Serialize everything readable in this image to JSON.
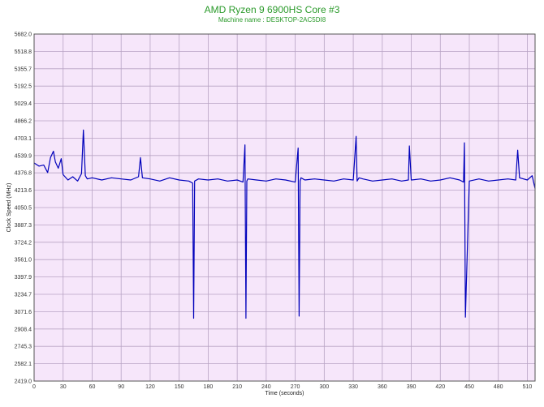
{
  "chart_data": {
    "type": "line",
    "title": "AMD Ryzen 9 6900HS Core #3",
    "subtitle": "Machine name : DESKTOP-2AC5DI8",
    "xlabel": "Time (seconds)",
    "ylabel": "Clock Speed (MHz)",
    "xlim": [
      0,
      518
    ],
    "ylim": [
      2419.0,
      5682.0
    ],
    "x_ticks": [
      "0",
      "30",
      "60",
      "90",
      "120",
      "150",
      "180",
      "210",
      "240",
      "270",
      "300",
      "330",
      "360",
      "390",
      "420",
      "450",
      "480",
      "510"
    ],
    "y_ticks": [
      "2419.0",
      "2582.1",
      "2745.3",
      "2908.4",
      "3071.6",
      "3234.7",
      "3397.9",
      "3561.0",
      "3724.2",
      "3887.3",
      "4050.5",
      "4213.6",
      "4376.8",
      "4539.9",
      "4703.1",
      "4866.2",
      "5029.4",
      "5192.5",
      "5355.7",
      "5518.8",
      "5682.0"
    ],
    "grid": true,
    "colors": {
      "line": "#0000bb",
      "plot_bg": "#f6e6fa",
      "grid": "#b8a3c4",
      "title": "#2a9a2a"
    },
    "series": [
      {
        "values_description_note": "",
        "x": [
          0,
          5,
          10,
          14,
          17,
          20,
          22,
          25,
          28,
          30,
          35,
          40,
          45,
          49,
          51,
          53,
          55,
          60,
          70,
          80,
          90,
          100,
          108,
          110,
          112,
          120,
          130,
          140,
          150,
          160,
          164,
          165,
          166,
          170,
          180,
          190,
          200,
          210,
          216,
          218,
          219,
          220,
          221,
          230,
          240,
          250,
          260,
          270,
          273,
          274,
          275,
          276,
          280,
          290,
          300,
          310,
          320,
          330,
          333,
          334,
          336,
          340,
          350,
          360,
          370,
          380,
          387,
          388,
          390,
          400,
          410,
          420,
          430,
          440,
          444,
          445,
          446,
          450,
          460,
          470,
          480,
          490,
          498,
          500,
          502,
          510,
          515,
          518
        ],
        "y": [
          4470,
          4440,
          4450,
          4380,
          4520,
          4580,
          4480,
          4420,
          4510,
          4360,
          4310,
          4340,
          4300,
          4370,
          4780,
          4350,
          4320,
          4330,
          4310,
          4330,
          4320,
          4310,
          4340,
          4520,
          4330,
          4320,
          4300,
          4330,
          4310,
          4300,
          4280,
          3010,
          4300,
          4320,
          4310,
          4320,
          4300,
          4310,
          4290,
          4640,
          3010,
          4300,
          4320,
          4310,
          4300,
          4320,
          4310,
          4290,
          4610,
          3030,
          4300,
          4330,
          4310,
          4320,
          4310,
          4300,
          4320,
          4310,
          4720,
          4300,
          4330,
          4320,
          4300,
          4310,
          4320,
          4300,
          4310,
          4630,
          4310,
          4320,
          4300,
          4310,
          4330,
          4310,
          4290,
          4660,
          3020,
          4300,
          4320,
          4300,
          4310,
          4320,
          4310,
          4590,
          4330,
          4310,
          4350,
          4230
        ]
      }
    ]
  }
}
